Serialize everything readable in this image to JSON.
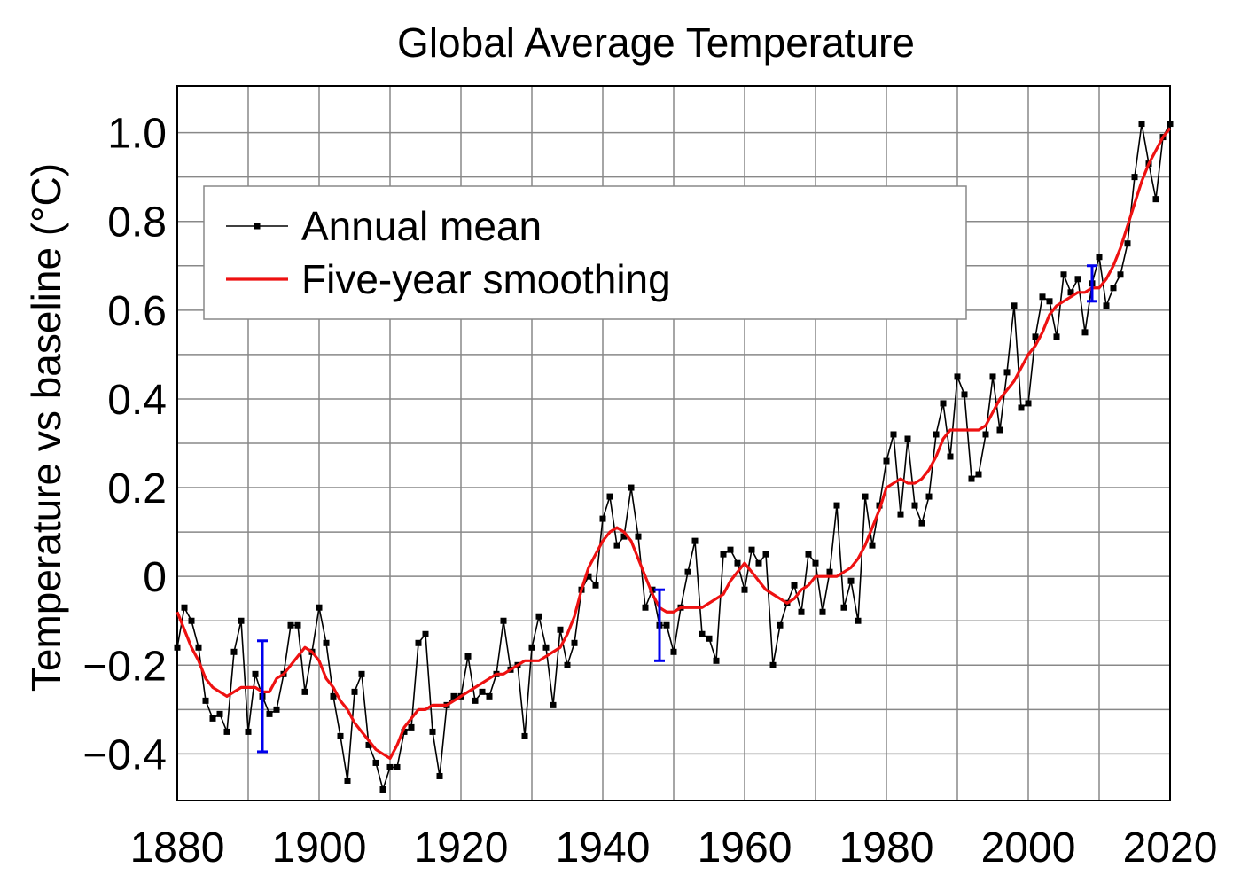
{
  "chart_data": {
    "type": "line",
    "title": "Global Average Temperature",
    "y_label": "Temperature vs baseline (°C)",
    "xlim": [
      1880,
      2020
    ],
    "ylim": [
      -0.505,
      1.105
    ],
    "xticks": [
      1880,
      1900,
      1920,
      1940,
      1960,
      1980,
      2000,
      2020
    ],
    "minor_xticks": [
      1890,
      1910,
      1930,
      1950,
      1970,
      1990,
      2010
    ],
    "yticks": [
      {
        "value": -0.4,
        "label": "−0.4"
      },
      {
        "value": -0.2,
        "label": "−0.2"
      },
      0,
      {
        "value": 0.2,
        "label": "0.2"
      },
      {
        "value": 0.4,
        "label": "0.4"
      },
      {
        "value": 0.6,
        "label": "0.6"
      },
      {
        "value": 0.8,
        "label": "0.8"
      },
      {
        "value": 1,
        "label": "1.0"
      }
    ],
    "minor_yticks": [
      -0.3,
      -0.1,
      0.1,
      0.3,
      0.5,
      0.7,
      0.9
    ],
    "grid": true,
    "legend": "upper left",
    "x": [
      1880,
      1881,
      1882,
      1883,
      1884,
      1885,
      1886,
      1887,
      1888,
      1889,
      1890,
      1891,
      1892,
      1893,
      1894,
      1895,
      1896,
      1897,
      1898,
      1899,
      1900,
      1901,
      1902,
      1903,
      1904,
      1905,
      1906,
      1907,
      1908,
      1909,
      1910,
      1911,
      1912,
      1913,
      1914,
      1915,
      1916,
      1917,
      1918,
      1919,
      1920,
      1921,
      1922,
      1923,
      1924,
      1925,
      1926,
      1927,
      1928,
      1929,
      1930,
      1931,
      1932,
      1933,
      1934,
      1935,
      1936,
      1937,
      1938,
      1939,
      1940,
      1941,
      1942,
      1943,
      1944,
      1945,
      1946,
      1947,
      1948,
      1949,
      1950,
      1951,
      1952,
      1953,
      1954,
      1955,
      1956,
      1957,
      1958,
      1959,
      1960,
      1961,
      1962,
      1963,
      1964,
      1965,
      1966,
      1967,
      1968,
      1969,
      1970,
      1971,
      1972,
      1973,
      1974,
      1975,
      1976,
      1977,
      1978,
      1979,
      1980,
      1981,
      1982,
      1983,
      1984,
      1985,
      1986,
      1987,
      1988,
      1989,
      1990,
      1991,
      1992,
      1993,
      1994,
      1995,
      1996,
      1997,
      1998,
      1999,
      2000,
      2001,
      2002,
      2003,
      2004,
      2005,
      2006,
      2007,
      2008,
      2009,
      2010,
      2011,
      2012,
      2013,
      2014,
      2015,
      2016,
      2017,
      2018,
      2019,
      2020
    ],
    "series": [
      {
        "name": "Annual mean",
        "color": "#000000",
        "marker": "square",
        "values": [
          -0.16,
          -0.07,
          -0.1,
          -0.16,
          -0.28,
          -0.32,
          -0.31,
          -0.35,
          -0.17,
          -0.1,
          -0.35,
          -0.22,
          -0.27,
          -0.31,
          -0.3,
          -0.22,
          -0.11,
          -0.11,
          -0.26,
          -0.17,
          -0.07,
          -0.15,
          -0.27,
          -0.36,
          -0.46,
          -0.26,
          -0.22,
          -0.38,
          -0.42,
          -0.48,
          -0.43,
          -0.43,
          -0.35,
          -0.34,
          -0.15,
          -0.13,
          -0.35,
          -0.45,
          -0.29,
          -0.27,
          -0.27,
          -0.18,
          -0.28,
          -0.26,
          -0.27,
          -0.22,
          -0.1,
          -0.21,
          -0.2,
          -0.36,
          -0.16,
          -0.09,
          -0.16,
          -0.29,
          -0.12,
          -0.2,
          -0.15,
          -0.03,
          0.0,
          -0.02,
          0.13,
          0.18,
          0.07,
          0.09,
          0.2,
          0.09,
          -0.07,
          -0.03,
          -0.11,
          -0.11,
          -0.17,
          -0.07,
          0.01,
          0.08,
          -0.13,
          -0.14,
          -0.19,
          0.05,
          0.06,
          0.03,
          -0.03,
          0.06,
          0.03,
          0.05,
          -0.2,
          -0.11,
          -0.06,
          -0.02,
          -0.08,
          0.05,
          0.03,
          -0.08,
          0.01,
          0.16,
          -0.07,
          -0.01,
          -0.1,
          0.18,
          0.07,
          0.16,
          0.26,
          0.32,
          0.14,
          0.31,
          0.16,
          0.12,
          0.18,
          0.32,
          0.39,
          0.27,
          0.45,
          0.41,
          0.22,
          0.23,
          0.32,
          0.45,
          0.33,
          0.46,
          0.61,
          0.38,
          0.39,
          0.54,
          0.63,
          0.62,
          0.54,
          0.68,
          0.64,
          0.67,
          0.55,
          0.66,
          0.72,
          0.61,
          0.65,
          0.68,
          0.75,
          0.9,
          1.02,
          0.93,
          0.85,
          0.99,
          1.02
        ]
      },
      {
        "name": "Five-year smoothing",
        "color": "#ee1111",
        "values": [
          -0.08,
          -0.12,
          -0.16,
          -0.19,
          -0.23,
          -0.25,
          -0.26,
          -0.27,
          -0.26,
          -0.25,
          -0.25,
          -0.25,
          -0.26,
          -0.26,
          -0.23,
          -0.22,
          -0.2,
          -0.18,
          -0.16,
          -0.17,
          -0.19,
          -0.23,
          -0.25,
          -0.28,
          -0.3,
          -0.33,
          -0.35,
          -0.37,
          -0.39,
          -0.4,
          -0.41,
          -0.38,
          -0.34,
          -0.32,
          -0.3,
          -0.3,
          -0.29,
          -0.29,
          -0.29,
          -0.28,
          -0.27,
          -0.26,
          -0.25,
          -0.24,
          -0.23,
          -0.22,
          -0.22,
          -0.21,
          -0.2,
          -0.19,
          -0.19,
          -0.19,
          -0.18,
          -0.17,
          -0.16,
          -0.13,
          -0.09,
          -0.03,
          0.02,
          0.05,
          0.08,
          0.1,
          0.11,
          0.1,
          0.08,
          0.04,
          0.0,
          -0.04,
          -0.07,
          -0.08,
          -0.08,
          -0.07,
          -0.07,
          -0.07,
          -0.07,
          -0.06,
          -0.05,
          -0.04,
          -0.01,
          0.01,
          0.03,
          0.01,
          -0.01,
          -0.03,
          -0.04,
          -0.05,
          -0.06,
          -0.05,
          -0.03,
          -0.02,
          0.0,
          0.0,
          0.0,
          0.0,
          0.01,
          0.02,
          0.04,
          0.07,
          0.11,
          0.15,
          0.2,
          0.21,
          0.22,
          0.21,
          0.21,
          0.22,
          0.24,
          0.27,
          0.31,
          0.33,
          0.33,
          0.33,
          0.33,
          0.33,
          0.34,
          0.37,
          0.4,
          0.42,
          0.44,
          0.47,
          0.5,
          0.52,
          0.55,
          0.59,
          0.61,
          0.62,
          0.63,
          0.64,
          0.64,
          0.65,
          0.65,
          0.67,
          0.7,
          0.74,
          0.79,
          0.84,
          0.89,
          0.93,
          0.96,
          0.99,
          1.01
        ]
      }
    ],
    "error_bars": {
      "color": "#0000ee",
      "x": [
        1892,
        1948,
        2009
      ],
      "values": [
        -0.27,
        -0.11,
        0.66
      ],
      "errors": [
        0.125,
        0.08,
        0.04
      ]
    }
  }
}
